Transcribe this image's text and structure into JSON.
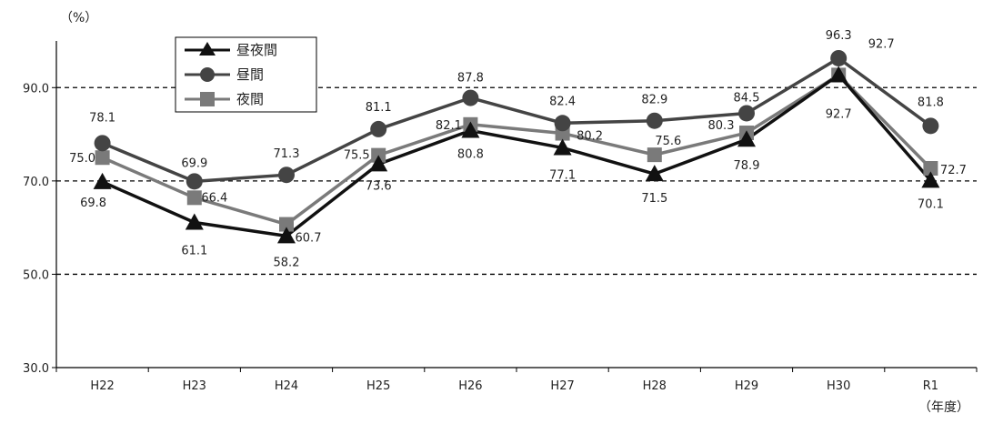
{
  "chart_data": {
    "type": "line",
    "title": "",
    "xlabel": "（年度）",
    "ylabel": "（%）",
    "ylim": [
      30,
      100
    ],
    "yticks": [
      "30.0",
      "50.0",
      "70.0",
      "90.0"
    ],
    "ytick_values": [
      30,
      50,
      70,
      90
    ],
    "dashed_gridlines": [
      50,
      70,
      90
    ],
    "categories": [
      "H22",
      "H23",
      "H24",
      "H25",
      "H26",
      "H27",
      "H28",
      "H29",
      "H30",
      "R1"
    ],
    "legend_position": "top-left",
    "series": [
      {
        "name": "昼夜間",
        "marker": "triangle",
        "color": "#111111",
        "values": [
          69.8,
          61.1,
          58.2,
          73.6,
          80.8,
          77.1,
          71.5,
          78.9,
          92.7,
          70.1
        ],
        "labels": [
          "69.8",
          "61.1",
          "58.2",
          "73.6",
          "80.8",
          "77.1",
          "71.5",
          "78.9",
          "92.7",
          "70.1"
        ]
      },
      {
        "name": "昼間",
        "marker": "circle",
        "color": "#444444",
        "values": [
          78.1,
          69.9,
          71.3,
          81.1,
          87.8,
          82.4,
          82.9,
          84.5,
          96.3,
          81.8
        ],
        "labels": [
          "78.1",
          "69.9",
          "71.3",
          "81.1",
          "87.8",
          "82.4",
          "82.9",
          "84.5",
          "96.3",
          "81.8"
        ]
      },
      {
        "name": "夜間",
        "marker": "square",
        "color": "#7a7a7a",
        "values": [
          75.0,
          66.4,
          60.7,
          75.5,
          82.1,
          80.2,
          75.6,
          80.3,
          92.7,
          72.7
        ],
        "labels": [
          "75.0",
          "66.4",
          "60.7",
          "75.5",
          "82.1",
          "80.2",
          "75.6",
          "80.3",
          "92.7",
          "72.7"
        ]
      }
    ]
  }
}
